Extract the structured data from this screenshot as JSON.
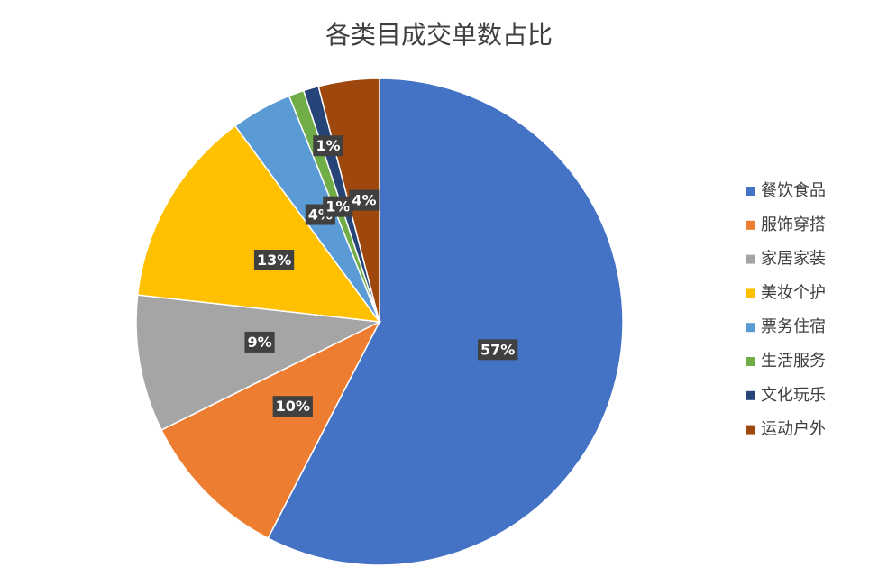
{
  "chart_data": {
    "type": "pie",
    "title": "各类目成交单数占比",
    "categories": [
      "餐饮食品",
      "服饰穿搭",
      "家居家装",
      "美妆个护",
      "票务住宿",
      "生活服务",
      "文化玩乐",
      "运动户外"
    ],
    "values": [
      57,
      10,
      9,
      13,
      4,
      1,
      1,
      4
    ],
    "value_labels": [
      "57%",
      "10%",
      "9%",
      "13%",
      "4%",
      "1%",
      "1%",
      "4%"
    ],
    "colors": [
      "#4472c4",
      "#ed7d31",
      "#a5a5a5",
      "#ffc000",
      "#5b9bd5",
      "#70ad47",
      "#264478",
      "#9e480e"
    ],
    "legend": "right"
  }
}
